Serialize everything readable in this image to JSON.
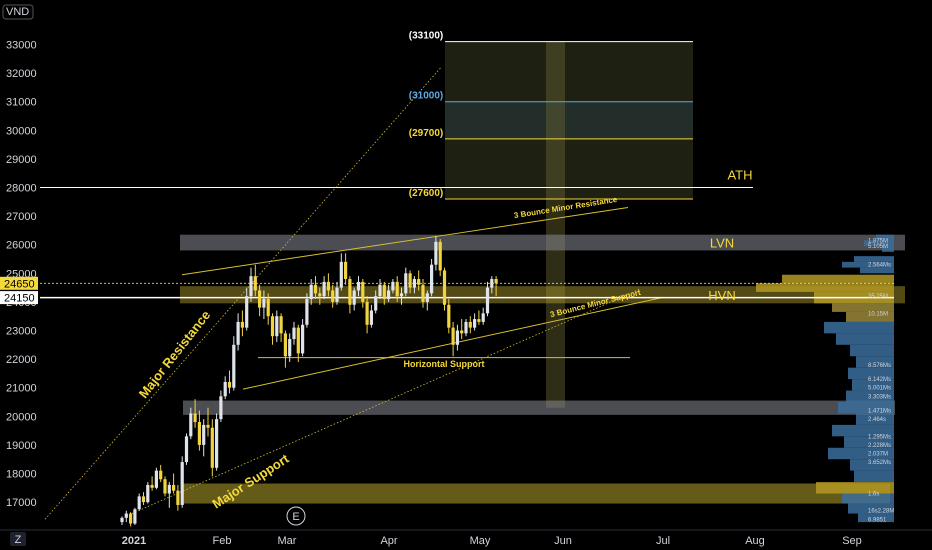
{
  "chart_data": {
    "type": "candlestick",
    "currency": "VND",
    "ylim": [
      16300,
      33600
    ],
    "y_ticks": [
      17000,
      18000,
      19000,
      20000,
      21000,
      22000,
      23000,
      24000,
      25000,
      26000,
      27000,
      28000,
      29000,
      30000,
      31000,
      32000,
      33000
    ],
    "x_ticks": [
      "2021",
      "Feb",
      "Mar",
      "Apr",
      "May",
      "Jun",
      "Jul",
      "Aug",
      "Sep"
    ],
    "price_tags": [
      {
        "value": 24650,
        "label": "24650",
        "style": "yellow"
      },
      {
        "value": 24150,
        "label": "24150",
        "style": "white"
      }
    ],
    "candles": [
      [
        16300,
        16500,
        16200,
        16450
      ],
      [
        16450,
        16700,
        16300,
        16600
      ],
      [
        16600,
        16650,
        16150,
        16250
      ],
      [
        16250,
        16800,
        16200,
        16750
      ],
      [
        16750,
        17300,
        16700,
        17200
      ],
      [
        17200,
        17350,
        16900,
        17000
      ],
      [
        17000,
        17700,
        16950,
        17600
      ],
      [
        17600,
        17900,
        17400,
        17500
      ],
      [
        17500,
        18200,
        17450,
        18100
      ],
      [
        18100,
        18300,
        17700,
        17800
      ],
      [
        17800,
        17900,
        17200,
        17300
      ],
      [
        17300,
        17700,
        16800,
        17600
      ],
      [
        17600,
        18000,
        17300,
        17400
      ],
      [
        17400,
        17600,
        16700,
        16900
      ],
      [
        16900,
        18600,
        16800,
        18400
      ],
      [
        18400,
        19400,
        18300,
        19300
      ],
      [
        19300,
        20300,
        19200,
        20100
      ],
      [
        20100,
        20600,
        19600,
        19800
      ],
      [
        19800,
        20200,
        18800,
        19000
      ],
      [
        19000,
        19900,
        18600,
        19700
      ],
      [
        19700,
        20300,
        19300,
        19600
      ],
      [
        19600,
        19900,
        17900,
        18200
      ],
      [
        18200,
        20100,
        18100,
        19900
      ],
      [
        19900,
        20900,
        19800,
        20700
      ],
      [
        20700,
        21400,
        20600,
        21200
      ],
      [
        21200,
        21600,
        20800,
        21000
      ],
      [
        21000,
        22800,
        20900,
        22500
      ],
      [
        22500,
        23600,
        22300,
        23300
      ],
      [
        23300,
        23700,
        22800,
        23100
      ],
      [
        23100,
        24500,
        23000,
        24200
      ],
      [
        24200,
        25200,
        24000,
        24900
      ],
      [
        24900,
        25300,
        24200,
        24400
      ],
      [
        24400,
        24600,
        23500,
        23800
      ],
      [
        23800,
        24400,
        23400,
        24100
      ],
      [
        24100,
        24300,
        23200,
        23500
      ],
      [
        23500,
        23600,
        22500,
        22800
      ],
      [
        22800,
        23700,
        22600,
        23500
      ],
      [
        23500,
        23600,
        22600,
        22900
      ],
      [
        22900,
        23000,
        21700,
        22100
      ],
      [
        22100,
        22900,
        21900,
        22700
      ],
      [
        22700,
        23300,
        22500,
        23100
      ],
      [
        23100,
        23200,
        21900,
        22200
      ],
      [
        22200,
        23400,
        22100,
        23200
      ],
      [
        23200,
        24300,
        23100,
        24100
      ],
      [
        24100,
        24800,
        23900,
        24600
      ],
      [
        24600,
        24900,
        24100,
        24300
      ],
      [
        24300,
        24500,
        23900,
        24200
      ],
      [
        24200,
        24900,
        24100,
        24700
      ],
      [
        24700,
        25000,
        24200,
        24400
      ],
      [
        24400,
        24600,
        23800,
        24000
      ],
      [
        24000,
        24700,
        23900,
        24500
      ],
      [
        24500,
        25700,
        24400,
        25400
      ],
      [
        25400,
        25700,
        24600,
        24800
      ],
      [
        24800,
        24900,
        23600,
        23900
      ],
      [
        23900,
        24500,
        23700,
        24400
      ],
      [
        24400,
        24900,
        24200,
        24700
      ],
      [
        24700,
        24800,
        23800,
        24000
      ],
      [
        24000,
        24200,
        22900,
        23200
      ],
      [
        23200,
        23900,
        23100,
        23700
      ],
      [
        23700,
        24400,
        23600,
        24200
      ],
      [
        24200,
        24800,
        24100,
        24600
      ],
      [
        24600,
        24700,
        23900,
        24100
      ],
      [
        24100,
        24600,
        24000,
        24400
      ],
      [
        24400,
        24800,
        24300,
        24700
      ],
      [
        24700,
        24900,
        24000,
        24200
      ],
      [
        24200,
        24500,
        23900,
        24300
      ],
      [
        24300,
        25200,
        24200,
        25000
      ],
      [
        25000,
        25100,
        24300,
        24500
      ],
      [
        24500,
        24900,
        24300,
        24800
      ],
      [
        24800,
        25100,
        24400,
        24600
      ],
      [
        24600,
        24800,
        23800,
        24000
      ],
      [
        24000,
        24400,
        23700,
        24300
      ],
      [
        24300,
        25500,
        24200,
        25300
      ],
      [
        25300,
        26300,
        25100,
        26100
      ],
      [
        26100,
        26200,
        24900,
        25100
      ],
      [
        25100,
        25200,
        23700,
        23900
      ],
      [
        23900,
        24100,
        22900,
        23100
      ],
      [
        23100,
        23300,
        22100,
        22500
      ],
      [
        22500,
        23200,
        22300,
        23000
      ],
      [
        23000,
        23400,
        22700,
        22900
      ],
      [
        22900,
        23400,
        22800,
        23300
      ],
      [
        23300,
        23500,
        22900,
        23100
      ],
      [
        23100,
        23600,
        23000,
        23400
      ],
      [
        23400,
        23700,
        23200,
        23300
      ],
      [
        23300,
        23800,
        23200,
        23600
      ],
      [
        23600,
        24700,
        23500,
        24500
      ],
      [
        24500,
        24900,
        24300,
        24800
      ],
      [
        24800,
        24900,
        24200,
        24650
      ]
    ],
    "levels": [
      {
        "label": "(33100)",
        "value": 33100
      },
      {
        "label": "(31000)",
        "value": 31000
      },
      {
        "label": "(29700)",
        "value": 29700
      },
      {
        "label": "(27600)",
        "value": 27600
      }
    ],
    "ath": {
      "label": "ATH",
      "value": 28000
    },
    "zones": [
      {
        "label": "LVN",
        "low": 25800,
        "high": 26350
      },
      {
        "label": "HVN",
        "low": 23950,
        "high": 24550
      },
      {
        "label": "",
        "low": 20050,
        "high": 20550
      },
      {
        "label": "",
        "low": 16950,
        "high": 17650
      }
    ],
    "annotations": [
      "Major Resistance",
      "Major Support",
      "3 Bounce Minor Resistance",
      "3 Bounce Minor Support",
      "Horizontal Support"
    ],
    "earnings_marker": "E",
    "volume_profile_labels": [
      "1.875M",
      "5.105M",
      "2.564Ms",
      "35.25M",
      "10.15M",
      "8.576Ms",
      "6.142Ms",
      "5.001Ms",
      "3.303Ms",
      "1.471Ms",
      "2.464s",
      "1.295Ms",
      "2.228Ms",
      "2.037M",
      "3.652Ms",
      "1.6s",
      "16s2.28M",
      "6.9851"
    ],
    "settings_glyph": "Z",
    "colors": {
      "up": "#dfe3ea",
      "down": "#f2d440",
      "accent": "#f5d93a",
      "blue_level": "#5aa9e6"
    }
  }
}
